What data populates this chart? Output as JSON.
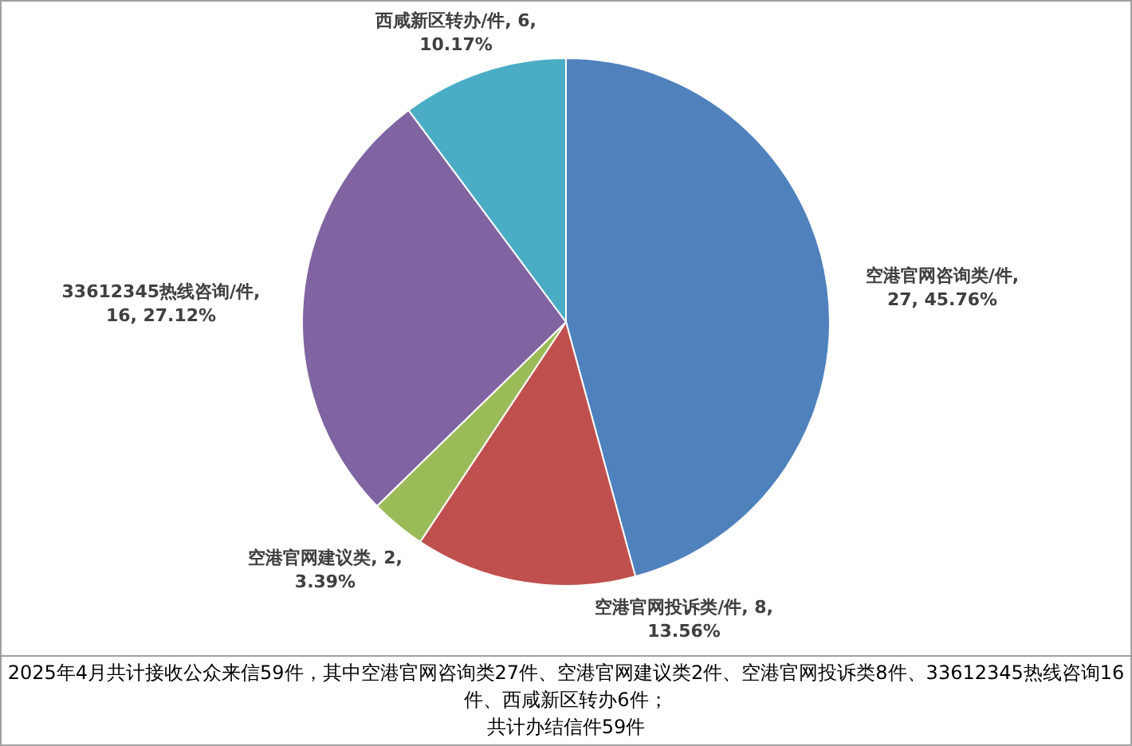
{
  "chart_data": {
    "type": "pie",
    "categories": [
      "空港官网咨询类/件",
      "空港官网投诉类/件",
      "空港官网建议类",
      "33612345热线咨询/件",
      "西咸新区转办/件"
    ],
    "values": [
      27,
      8,
      2,
      16,
      6
    ],
    "colors": [
      "#4f81bd",
      "#c0504d",
      "#9bbb59",
      "#8064a2",
      "#4bacc6"
    ],
    "value_labels": [
      ",\n27, 45.76%",
      ", 8,\n13.56%",
      ", 2,\n3.39%",
      ",\n16, 27.12%",
      ", 6,\n10.17%"
    ],
    "legend": false,
    "annotations": [
      "2025年4月共计接收公众来信59件，其中空港官网咨询类27件、空港官网建议类2件、空港官网投诉类8件、33612345热线咨询16件、西咸新区转办6件；",
      "共计办结信件59件"
    ]
  }
}
